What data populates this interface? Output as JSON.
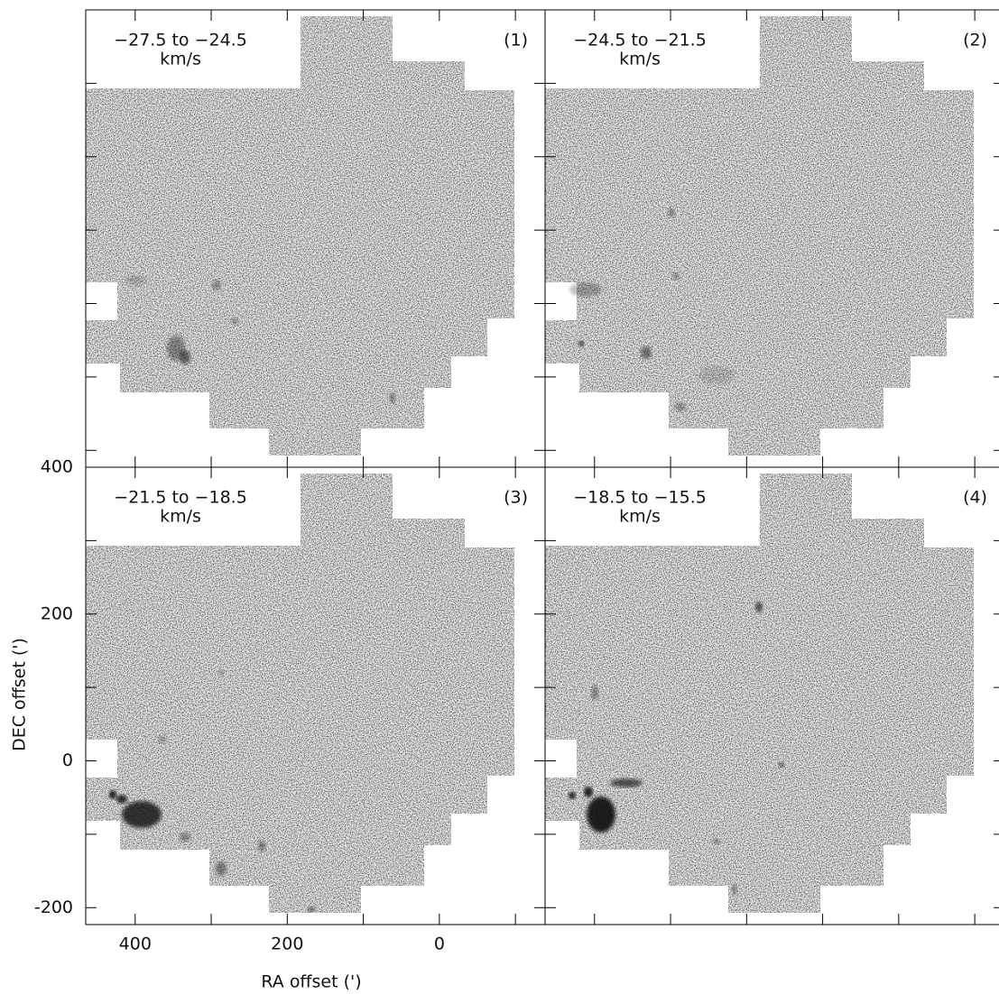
{
  "chart_data": [
    {
      "type": "image",
      "title": "−27.5 to −24.5",
      "subtitle": "km/s",
      "annotation": "(1)",
      "xlim": [
        465,
        -139
      ],
      "ylim": [
        -223,
        400
      ],
      "xticks_minor": [
        400,
        300,
        200,
        100,
        0,
        -100
      ],
      "yticks_minor": [
        300,
        200,
        100,
        0,
        -100,
        -200
      ]
    },
    {
      "type": "image",
      "title": "−24.5 to −21.5",
      "subtitle": "km/s",
      "annotation": "(2)",
      "xlim": [
        465,
        -139
      ],
      "ylim": [
        -223,
        400
      ],
      "xticks_minor": [
        400,
        300,
        200,
        100,
        0,
        -100
      ],
      "yticks_minor": [
        300,
        200,
        100,
        0,
        -100,
        -200
      ]
    },
    {
      "type": "image",
      "title": "−21.5 to −18.5",
      "subtitle": "km/s",
      "annotation": "(3)",
      "xlabel": "RA offset (')",
      "ylabel": "DEC offset (')",
      "xlim": [
        465,
        -139
      ],
      "ylim": [
        -223,
        400
      ],
      "xticks": [
        400,
        200,
        0
      ],
      "yticks": [
        400,
        200,
        0,
        -200
      ],
      "xticks_minor": [
        300,
        100,
        -100
      ],
      "yticks_minor": [
        300,
        100,
        -100
      ]
    },
    {
      "type": "image",
      "title": "−18.5 to −15.5",
      "subtitle": "km/s",
      "annotation": "(4)",
      "xlim": [
        465,
        -139
      ],
      "ylim": [
        -223,
        400
      ],
      "xticks_minor": [
        400,
        300,
        200,
        100,
        0,
        -100
      ],
      "yticks_minor": [
        300,
        200,
        100,
        0,
        -100,
        -200
      ]
    }
  ]
}
